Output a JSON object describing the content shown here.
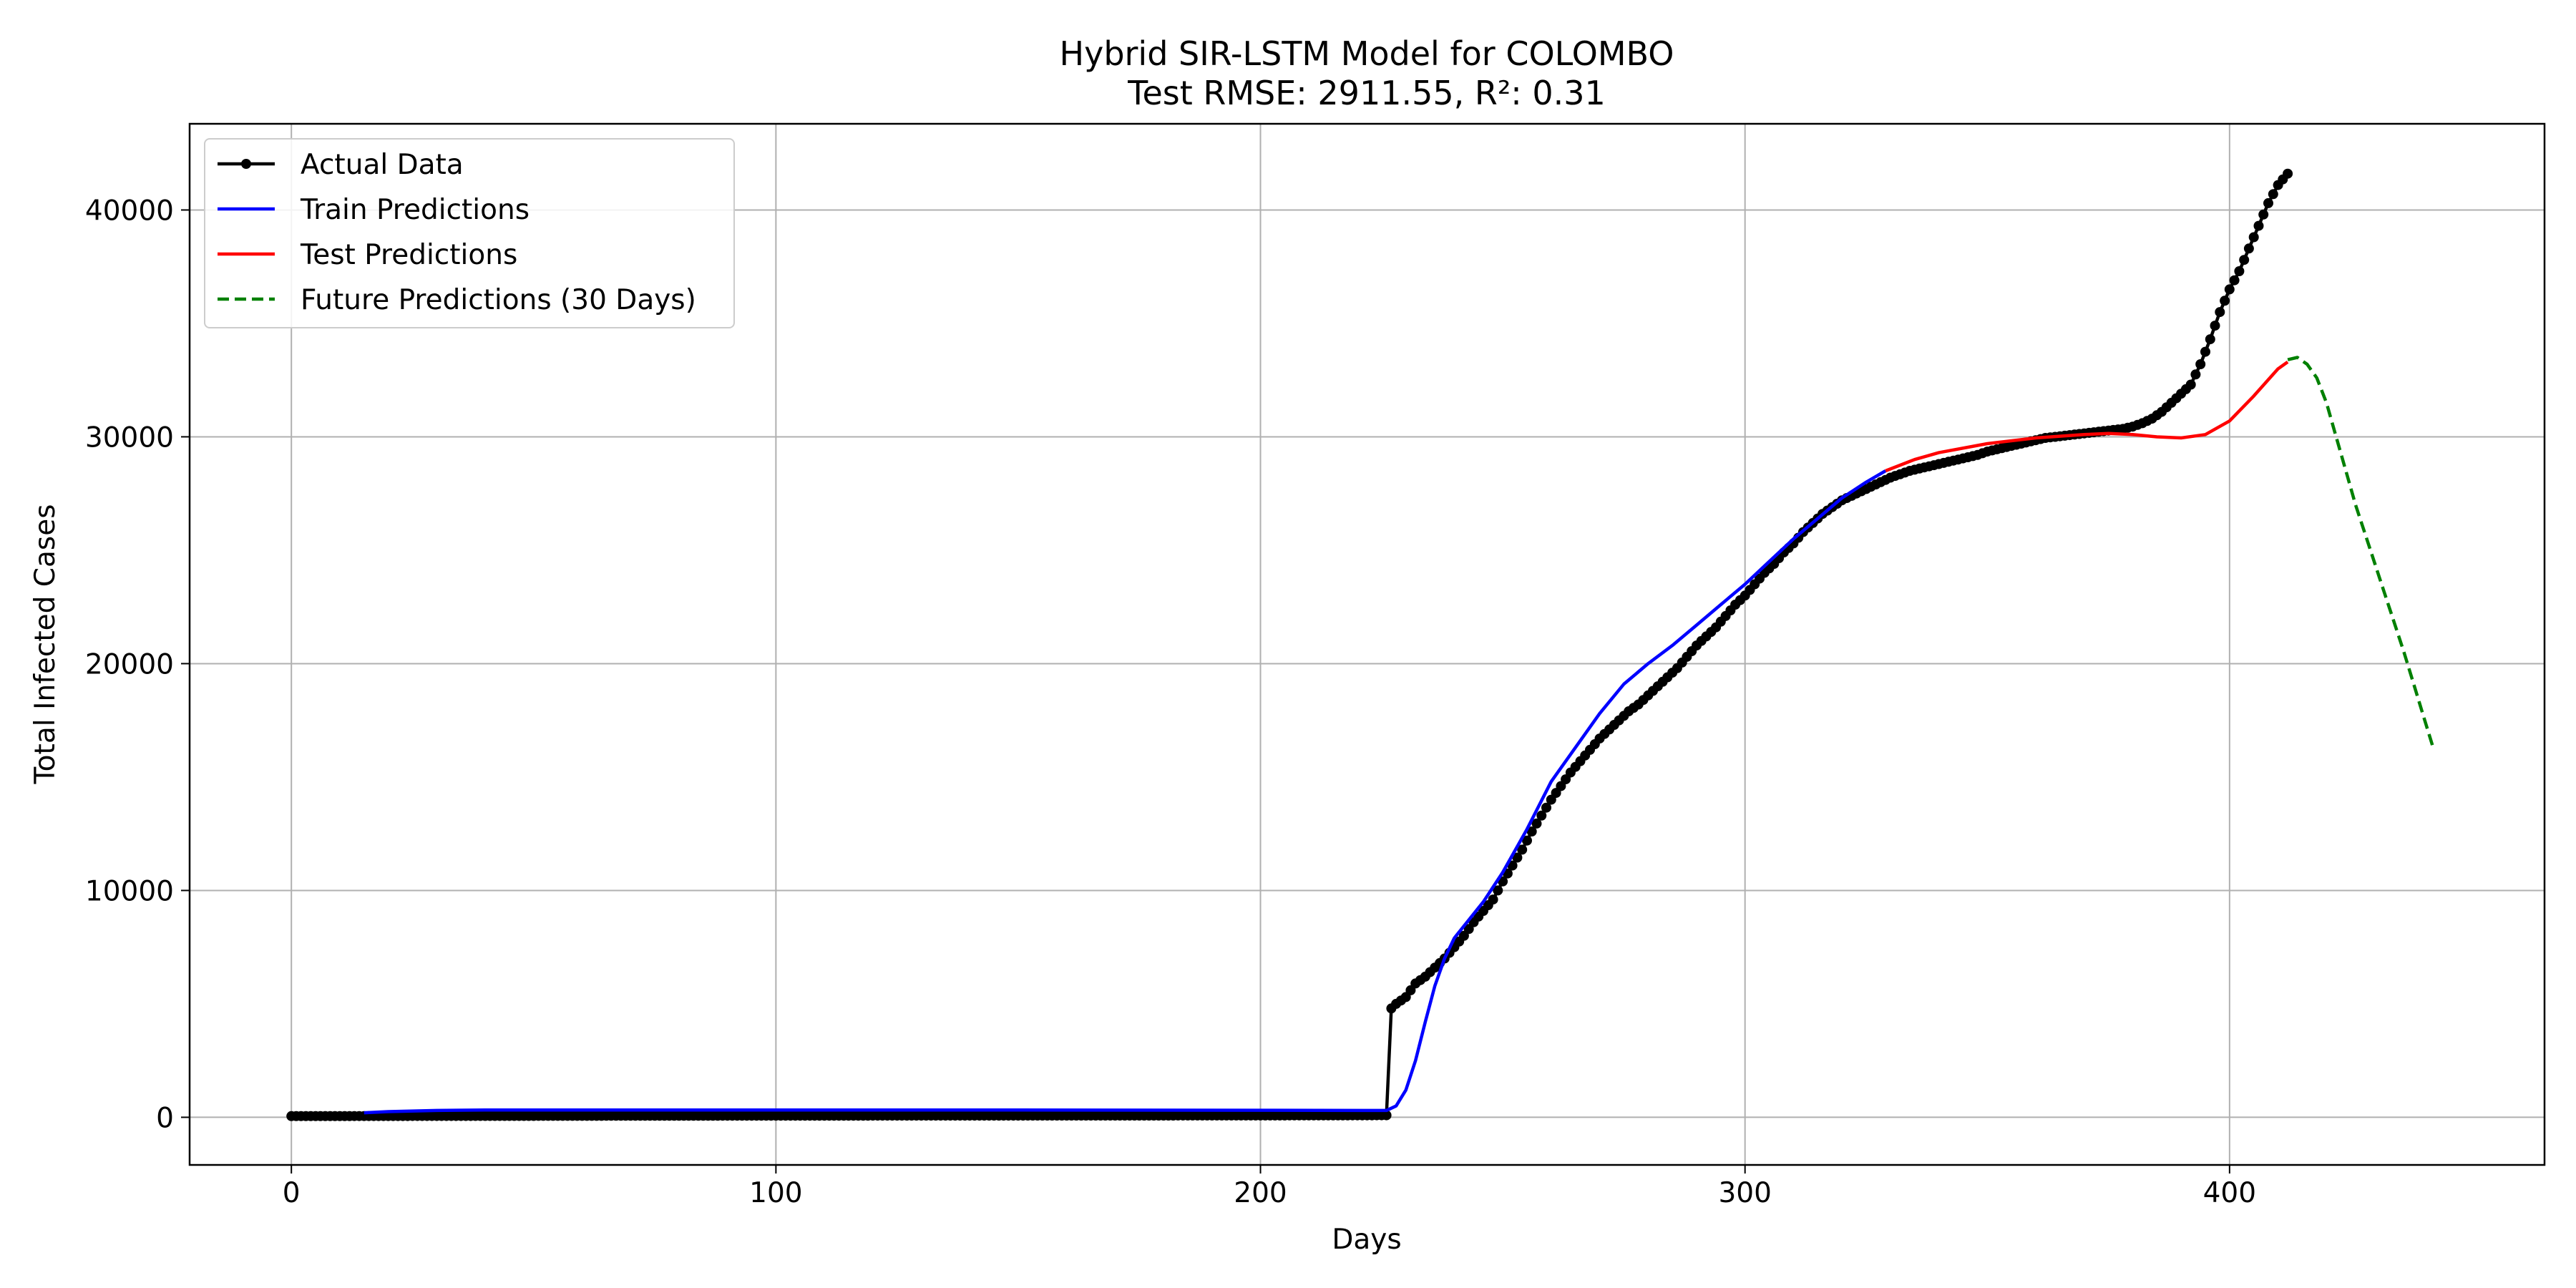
{
  "chart_data": {
    "type": "line",
    "title": "Hybrid SIR-LSTM Model for COLOMBO",
    "subtitle": "Test RMSE: 2911.55, R²: 0.31",
    "xlabel": "Days",
    "ylabel": "Total Infected Cases",
    "xlim": [
      -21,
      465
    ],
    "ylim": [
      -2100,
      43800
    ],
    "xticks": [
      0,
      100,
      200,
      300,
      400
    ],
    "yticks": [
      0,
      10000,
      20000,
      30000,
      40000
    ],
    "grid": true,
    "legend_position": "top-left",
    "series": [
      {
        "name": "Actual Data",
        "color": "#000000",
        "style": "solid-marker",
        "x": [
          0,
          20,
          40,
          60,
          80,
          100,
          120,
          140,
          160,
          180,
          200,
          220,
          226,
          227,
          228,
          230,
          232,
          234,
          236,
          238,
          240,
          242,
          244,
          246,
          248,
          250,
          252,
          254,
          256,
          258,
          260,
          262,
          264,
          266,
          268,
          270,
          272,
          274,
          276,
          278,
          280,
          282,
          284,
          286,
          288,
          290,
          292,
          294,
          296,
          298,
          300,
          302,
          304,
          306,
          308,
          310,
          312,
          314,
          316,
          318,
          320,
          322,
          324,
          326,
          328,
          330,
          332,
          334,
          336,
          338,
          340,
          342,
          344,
          346,
          348,
          350,
          352,
          354,
          356,
          358,
          360,
          362,
          364,
          366,
          368,
          370,
          372,
          374,
          376,
          378,
          380,
          382,
          384,
          386,
          388,
          390,
          392,
          394,
          396,
          398,
          400,
          402,
          404,
          406,
          408,
          410,
          412
        ],
        "y": [
          50,
          55,
          60,
          65,
          68,
          70,
          72,
          74,
          76,
          78,
          80,
          85,
          90,
          4800,
          5000,
          5300,
          5900,
          6200,
          6600,
          7000,
          7500,
          8000,
          8600,
          9100,
          9600,
          10400,
          11100,
          11800,
          12600,
          13300,
          14000,
          14600,
          15200,
          15700,
          16200,
          16700,
          17100,
          17500,
          17900,
          18200,
          18600,
          19000,
          19400,
          19800,
          20300,
          20800,
          21200,
          21600,
          22100,
          22600,
          23000,
          23500,
          24000,
          24400,
          24900,
          25300,
          25800,
          26200,
          26600,
          26900,
          27200,
          27400,
          27600,
          27800,
          28000,
          28200,
          28350,
          28500,
          28600,
          28700,
          28800,
          28900,
          29000,
          29100,
          29200,
          29350,
          29450,
          29550,
          29650,
          29750,
          29850,
          29950,
          30000,
          30050,
          30100,
          30150,
          30200,
          30250,
          30300,
          30350,
          30450,
          30600,
          30800,
          31100,
          31500,
          31900,
          32300,
          33200,
          34300,
          35500,
          36500,
          37300,
          38300,
          39300,
          40300,
          41100,
          41600
        ]
      },
      {
        "name": "Train Predictions",
        "color": "#0000ff",
        "style": "solid",
        "x": [
          15,
          20,
          30,
          40,
          60,
          100,
          150,
          200,
          226,
          228,
          230,
          232,
          234,
          236,
          238,
          240,
          243,
          246,
          250,
          255,
          260,
          265,
          270,
          275,
          280,
          285,
          290,
          295,
          300,
          305,
          310,
          315,
          320,
          325,
          329
        ],
        "y": [
          200,
          250,
          300,
          320,
          320,
          320,
          320,
          310,
          300,
          500,
          1200,
          2500,
          4200,
          5800,
          7000,
          7900,
          8700,
          9500,
          10800,
          12700,
          14800,
          16300,
          17800,
          19100,
          20000,
          20800,
          21700,
          22600,
          23500,
          24500,
          25500,
          26400,
          27300,
          28000,
          28500
        ]
      },
      {
        "name": "Test Predictions",
        "color": "#ff0000",
        "style": "solid",
        "x": [
          329,
          335,
          340,
          350,
          360,
          370,
          375,
          380,
          385,
          390,
          395,
          400,
          405,
          410,
          412
        ],
        "y": [
          28500,
          29000,
          29300,
          29700,
          29950,
          30100,
          30150,
          30100,
          30000,
          29950,
          30100,
          30700,
          31800,
          33000,
          33300
        ]
      },
      {
        "name": "Future Predictions (30 Days)",
        "color": "#008000",
        "style": "dashed",
        "x": [
          412,
          414,
          416,
          418,
          420,
          422,
          424,
          426,
          428,
          430,
          432,
          434,
          436,
          438,
          440,
          442
        ],
        "y": [
          33400,
          33500,
          33200,
          32600,
          31500,
          30000,
          28500,
          27000,
          25700,
          24400,
          23100,
          21800,
          20500,
          19100,
          17700,
          16300
        ]
      }
    ]
  }
}
